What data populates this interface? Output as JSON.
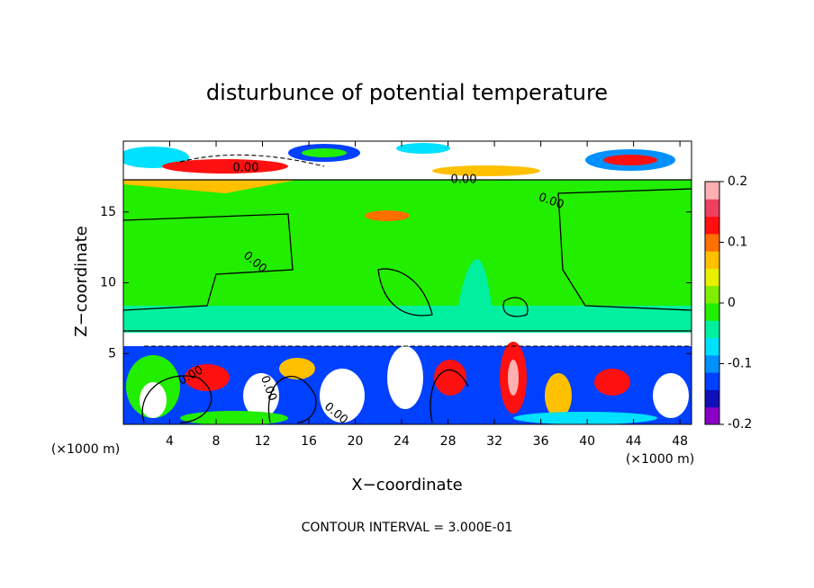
{
  "chart_data": {
    "type": "contour",
    "title": "disturbunce of potential temperature",
    "x_label": "X−coordinate",
    "y_label": "Z−coordinate",
    "x_unit": "(×1000 m)",
    "x_unit_right": "(×1000 m)",
    "footer": "CONTOUR INTERVAL = 3.000E-01",
    "xlim": [
      0,
      49
    ],
    "ylim": [
      0,
      20
    ],
    "xticks": [
      4,
      8,
      12,
      16,
      20,
      24,
      28,
      32,
      36,
      40,
      44,
      48
    ],
    "yticks": [
      5,
      10,
      15
    ],
    "colorbar_lim": [
      -0.2,
      0.2
    ],
    "colorbar_ticks": [
      0.2,
      0.1,
      0,
      -0.1,
      -0.2
    ],
    "colormap": [
      "#8a00c8",
      "#1010b8",
      "#0040ff",
      "#0090ff",
      "#00e0ff",
      "#00f0a0",
      "#22ee00",
      "#80ee00",
      "#e8f000",
      "#ffc000",
      "#ff7000",
      "#ff1010",
      "#f04060",
      "#ffb0b0"
    ],
    "annotations": [
      "0.00",
      "0.00",
      "0.00",
      "0.00",
      "0.00",
      "0.00",
      "0.00"
    ]
  }
}
